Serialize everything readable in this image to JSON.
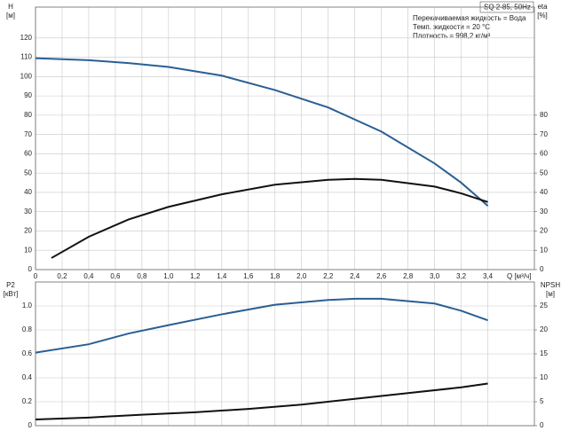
{
  "chart_data": [
    {
      "type": "line",
      "title": "SQ 2-85, 50Hz",
      "annotations": [
        "Перекачиваемая жидкость = Вода",
        "Темп. жидкости = 20 °C",
        "Плотность = 998,2 кг/м³"
      ],
      "ylabel": "H",
      "yunit": "[м]",
      "y2label": "eta",
      "y2unit": "[%]",
      "xlabel": "Q [м³/ч]",
      "xlim": [
        0,
        3.75
      ],
      "xticks": [
        0,
        {
          "value": 0.2,
          "label": "0,2"
        },
        {
          "value": 0.4,
          "label": "0,4"
        },
        {
          "value": 0.6,
          "label": "0,6"
        },
        {
          "value": 0.8,
          "label": "0,8"
        },
        {
          "value": 1,
          "label": "1,0"
        },
        {
          "value": 1.2,
          "label": "1,2"
        },
        {
          "value": 1.4,
          "label": "1,4"
        },
        {
          "value": 1.6,
          "label": "1,6"
        },
        {
          "value": 1.8,
          "label": "1,8"
        },
        {
          "value": 2,
          "label": "2,0"
        },
        {
          "value": 2.2,
          "label": "2,2"
        },
        {
          "value": 2.4,
          "label": "2,4"
        },
        {
          "value": 2.6,
          "label": "2,6"
        },
        {
          "value": 2.8,
          "label": "2,8"
        },
        {
          "value": 3,
          "label": "3,0"
        },
        {
          "value": 3.2,
          "label": "3,2"
        },
        {
          "value": 3.4,
          "label": "3,4"
        }
      ],
      "ylim": [
        0,
        136
      ],
      "yticks": [
        0,
        10,
        20,
        30,
        40,
        50,
        60,
        70,
        80,
        90,
        100,
        110,
        120
      ],
      "y2lim": [
        0,
        136
      ],
      "y2ticks": [
        0,
        10,
        20,
        30,
        40,
        50,
        60,
        70,
        80
      ],
      "grid": true,
      "series": [
        {
          "color": "#2a5f93",
          "axis": "y",
          "x": [
            0,
            0.4,
            0.7,
            1.0,
            1.4,
            1.8,
            2.2,
            2.6,
            3.0,
            3.2,
            3.4
          ],
          "values": [
            109.5,
            108.5,
            107,
            105,
            100.5,
            93,
            84,
            71.5,
            55,
            45,
            33
          ]
        },
        {
          "color": "#111111",
          "axis": "y2",
          "x": [
            0.12,
            0.4,
            0.7,
            1.0,
            1.4,
            1.8,
            2.2,
            2.4,
            2.6,
            3.0,
            3.2,
            3.4
          ],
          "values": [
            6,
            17,
            26,
            32.5,
            39,
            44,
            46.5,
            47,
            46.5,
            43,
            39.5,
            35
          ]
        }
      ]
    },
    {
      "type": "line",
      "ylabel": "P2",
      "yunit": "[кВт]",
      "y2label": "NPSH",
      "y2unit": "[м]",
      "xlim": [
        0,
        3.75
      ],
      "ylim": [
        0,
        1.2
      ],
      "yticks": [
        0,
        0.2,
        0.4,
        0.6,
        0.8,
        {
          "value": 1,
          "label": "1.0"
        }
      ],
      "y2lim": [
        0,
        30
      ],
      "y2ticks": [
        0,
        5,
        10,
        15,
        20,
        25
      ],
      "grid": true,
      "series": [
        {
          "color": "#2a5f93",
          "axis": "y",
          "x": [
            0,
            0.4,
            0.7,
            1.0,
            1.4,
            1.8,
            2.2,
            2.4,
            2.6,
            3.0,
            3.2,
            3.4
          ],
          "values": [
            0.61,
            0.68,
            0.77,
            0.84,
            0.93,
            1.01,
            1.05,
            1.06,
            1.06,
            1.02,
            0.96,
            0.88
          ]
        },
        {
          "color": "#111111",
          "axis": "y2",
          "x": [
            0,
            0.4,
            0.8,
            1.2,
            1.6,
            2.0,
            2.4,
            2.8,
            3.2,
            3.4
          ],
          "values": [
            1.3,
            1.7,
            2.3,
            2.8,
            3.5,
            4.4,
            5.6,
            6.8,
            8,
            8.8
          ]
        }
      ]
    }
  ]
}
